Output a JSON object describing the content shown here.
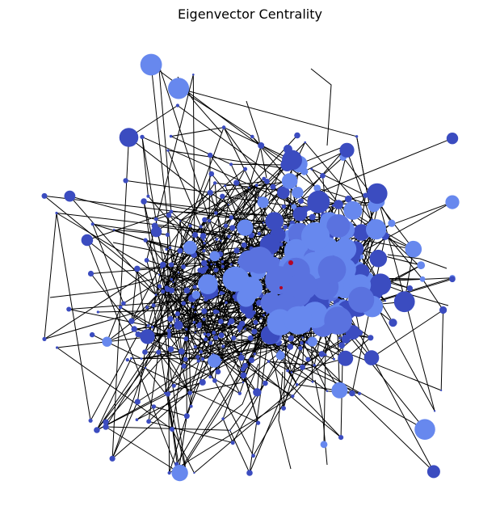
{
  "figure": {
    "title": "Eigenvector Centrality"
  },
  "chart_data": {
    "type": "network",
    "title": "Eigenvector Centrality",
    "node_color_low": "#3b4cc0",
    "node_color_mid": "#6788ee",
    "node_color_high": "#b40426",
    "edge_color": "#000000",
    "background": "#ffffff",
    "axes_visible": false
  }
}
